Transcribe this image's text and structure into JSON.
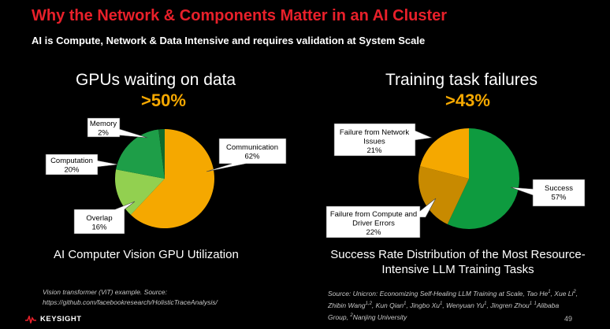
{
  "header": {
    "title": "Why the Network & Components Matter in an AI Cluster",
    "subtitle": "AI is Compute, Network & Data Intensive and requires validation at System Scale"
  },
  "left": {
    "heading": "GPUs waiting on data",
    "highlight": ">50%",
    "caption": "AI Computer Vision GPU Utilization",
    "source": [
      "Vision transformer (ViT) example. Source:",
      "https://github.com/facebookresearch/HolisticTraceAnalysis/"
    ]
  },
  "right": {
    "heading": "Training task failures",
    "highlight": ">43%",
    "caption_line1": "Success Rate Distribution of the Most Resource-",
    "caption_line2": "Intensive LLM Training Tasks",
    "source_line1": "Source:  Unicron: Economizing Self-Healing LLM Training at Scale,  Tao He",
    "source_line1_b": ", Xue Li",
    "source_line2_a": "Zhibin Wang",
    "source_line2_b": ", Kun Qian",
    "source_line2_c": ", Jingbo Xu",
    "source_line2_d": ", Wenyuan Yu",
    "source_line2_e": ", Jingren Zhou",
    "source_line2_f": "Alibaba",
    "source_line3_a": "Group, ",
    "source_line3_b": "Nanjing University",
    "sup_1": "1",
    "sup_2": "2",
    "sup_12": "1,2"
  },
  "footer": {
    "logo_text": "KEYSIGHT",
    "page_number": "49"
  },
  "chart_data": [
    {
      "type": "pie",
      "slices": [
        {
          "label": "Communication",
          "value": 62,
          "display": "62%",
          "color": "#f5a800"
        },
        {
          "label": "Overlap",
          "value": 16,
          "display": "16%",
          "color": "#92d050"
        },
        {
          "label": "Computation",
          "value": 20,
          "display": "20%",
          "color": "#1e9e48"
        },
        {
          "label": "Memory",
          "value": 2,
          "display": "2%",
          "color": "#0f6b2c"
        }
      ]
    },
    {
      "type": "pie",
      "slices": [
        {
          "label": "Success",
          "value": 57,
          "display": "57%",
          "color": "#0e9b3f"
        },
        {
          "label": "Failure from Compute and Driver Errors",
          "value": 22,
          "display": "22%",
          "color": "#c88a00"
        },
        {
          "label": "Failure from Network Issues",
          "value": 21,
          "display": "21%",
          "color": "#f5a800"
        }
      ]
    }
  ]
}
